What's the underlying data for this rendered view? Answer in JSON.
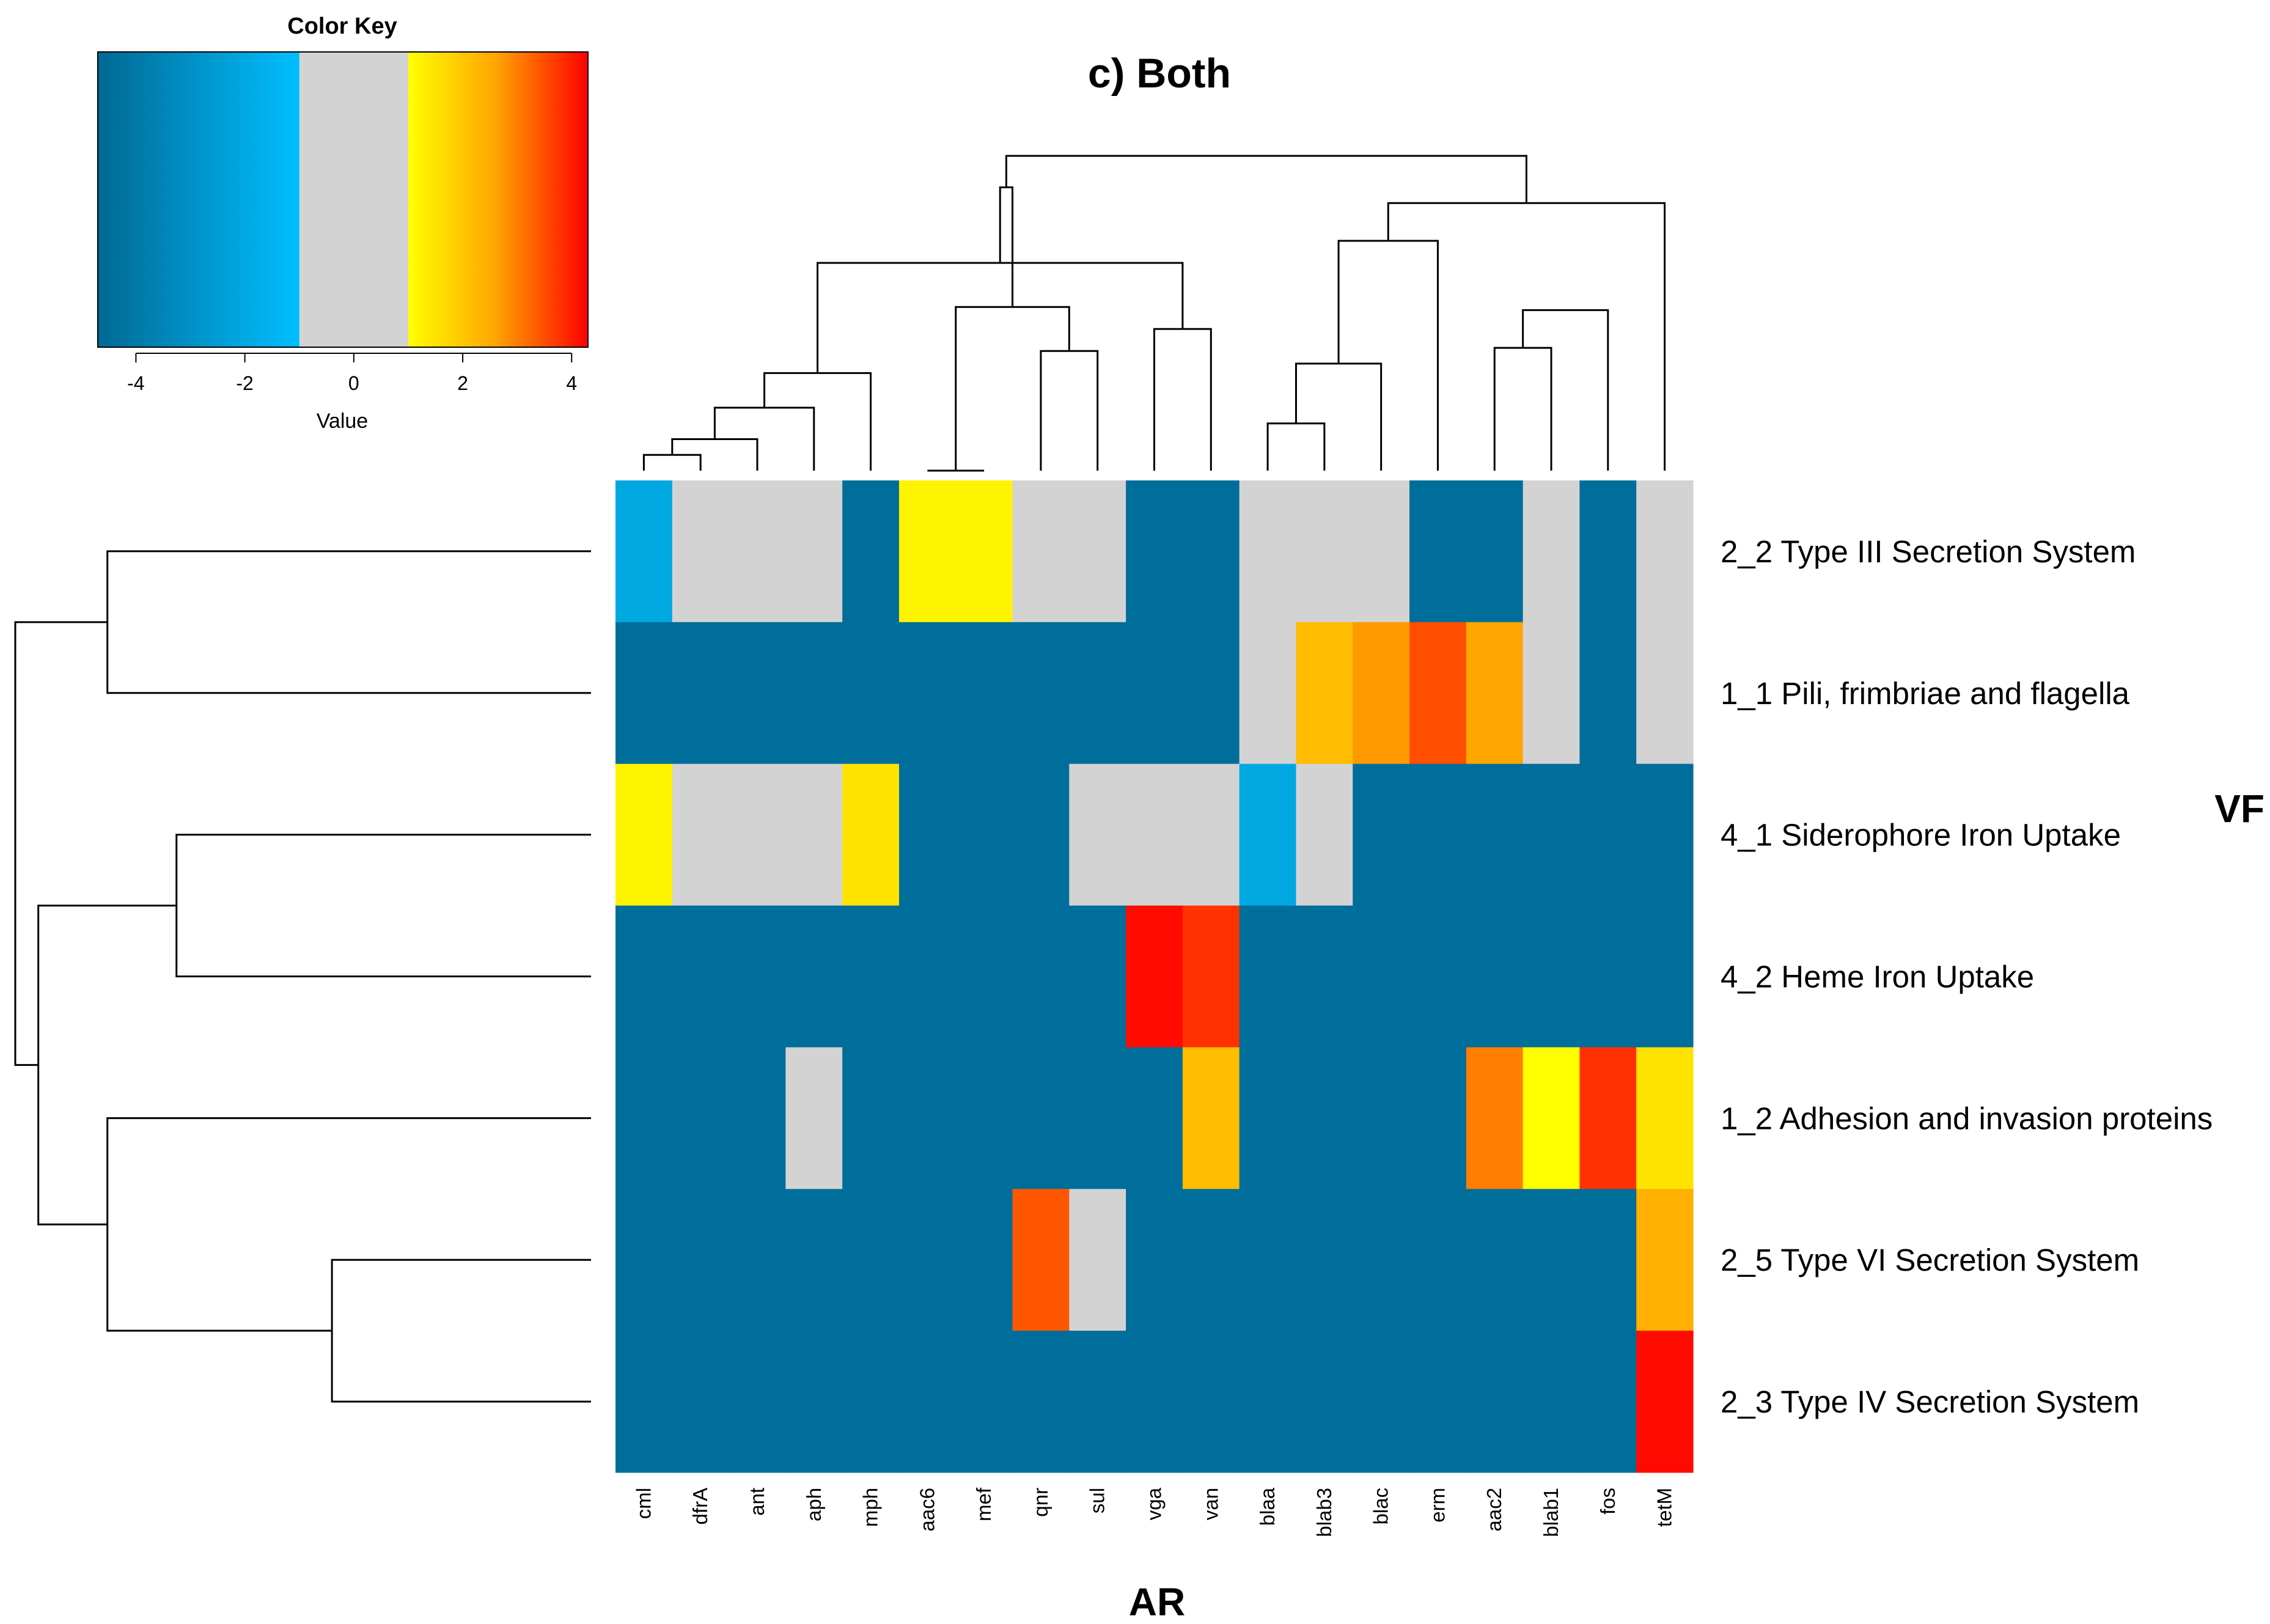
{
  "chart_data": {
    "type": "heatmap",
    "title": "c) Both",
    "xlabel": "AR",
    "ylabel": "VF",
    "columns": [
      "cml",
      "dfrA",
      "ant",
      "aph",
      "mph",
      "aac6",
      "mef",
      "qnr",
      "sul",
      "vga",
      "van",
      "blaa",
      "blab3",
      "blac",
      "erm",
      "aac2",
      "blab1",
      "fos",
      "tetM"
    ],
    "rows": [
      "2_2 Type III Secretion System",
      "1_1 Pili, frimbriae and flagella",
      "4_1 Siderophore Iron Uptake",
      "4_2 Heme Iron Uptake",
      "1_2 Adhesion and invasion proteins",
      "2_5 Type VI Secretion System",
      "2_3 Type IV Secretion System"
    ],
    "values": [
      [
        -2,
        0,
        0,
        0,
        -4.5,
        1.2,
        1.2,
        0,
        0,
        -4.5,
        -4.5,
        0,
        0,
        0,
        -4.5,
        -4.5,
        0,
        -4.5,
        0
      ],
      [
        -4.5,
        -4.5,
        -4.5,
        -4.5,
        -4.5,
        -4.5,
        -4.5,
        -4.5,
        -4.5,
        -4.5,
        -4.5,
        0,
        2.2,
        2.7,
        3.5,
        2.6,
        0,
        -4.5,
        0
      ],
      [
        1.2,
        0,
        0,
        0,
        1.5,
        -4.5,
        -4.5,
        -4.5,
        0,
        0,
        0,
        -2,
        0,
        -4.5,
        -4.5,
        -4.5,
        -4.5,
        -4.5,
        -4.5
      ],
      [
        -4.5,
        -4.5,
        -4.5,
        -4.5,
        -4.5,
        -4.5,
        -4.5,
        -4.5,
        -4.5,
        4.2,
        3.8,
        -4.5,
        -4.5,
        -4.5,
        -4.5,
        -4.5,
        -4.5,
        -4.5,
        -4.5
      ],
      [
        -4.5,
        -4.5,
        -4.5,
        0,
        -4.5,
        -4.5,
        -4.5,
        -4.5,
        -4.5,
        -4.5,
        2.2,
        -4.5,
        -4.5,
        -4.5,
        -4.5,
        3.0,
        1.0,
        3.8,
        1.5
      ],
      [
        -4.5,
        -4.5,
        -4.5,
        -4.5,
        -4.5,
        -4.5,
        -4.5,
        3.4,
        0,
        -4.5,
        -4.5,
        -4.5,
        -4.5,
        -4.5,
        -4.5,
        -4.5,
        -4.5,
        -4.5,
        2.4
      ],
      [
        -4.5,
        -4.5,
        -4.5,
        -4.5,
        -4.5,
        -4.5,
        -4.5,
        -4.5,
        -4.5,
        -4.5,
        -4.5,
        -4.5,
        -4.5,
        -4.5,
        -4.5,
        -4.5,
        -4.5,
        -4.5,
        4.2
      ]
    ],
    "color_key": {
      "title": "Color Key",
      "xlabel": "Value",
      "range": [
        -4.7,
        4.3
      ],
      "ticks": [
        -4,
        -2,
        0,
        2,
        4
      ],
      "tick_labels": [
        "-4",
        "-2",
        "0",
        "2",
        "4"
      ],
      "stops": [
        {
          "value": -4.7,
          "color": "#006994"
        },
        {
          "value": -1,
          "color": "#00BFFF"
        },
        {
          "value": -0.999,
          "color": "#D3D3D3"
        },
        {
          "value": 0.999,
          "color": "#D3D3D3"
        },
        {
          "value": 1,
          "color": "#FFFF00"
        },
        {
          "value": 2.6,
          "color": "#FFA500"
        },
        {
          "value": 4.3,
          "color": "#FF0000"
        }
      ]
    },
    "column_dendrogram": [
      [
        0,
        1,
        0.05
      ],
      [
        2,
        19,
        0.1
      ],
      [
        3,
        20,
        0.2
      ],
      [
        4,
        21,
        0.31
      ],
      [
        5,
        6,
        0.0
      ],
      [
        7,
        8,
        0.38
      ],
      [
        23,
        24,
        0.52
      ],
      [
        9,
        10,
        0.45
      ],
      [
        22,
        26,
        0.66
      ],
      [
        25,
        27,
        0.9
      ],
      [
        11,
        12,
        0.15
      ],
      [
        29,
        13,
        0.34
      ],
      [
        15,
        16,
        0.39
      ],
      [
        31,
        17,
        0.51
      ],
      [
        30,
        14,
        0.73
      ],
      [
        33,
        18,
        0.85
      ],
      [
        28,
        34,
        1.0
      ]
    ],
    "row_dendrogram": [
      [
        0,
        1,
        0.84
      ],
      [
        2,
        3,
        0.72
      ],
      [
        5,
        6,
        0.45
      ],
      [
        4,
        9,
        0.84
      ],
      [
        8,
        10,
        0.96
      ],
      [
        7,
        11,
        1.0
      ]
    ]
  }
}
